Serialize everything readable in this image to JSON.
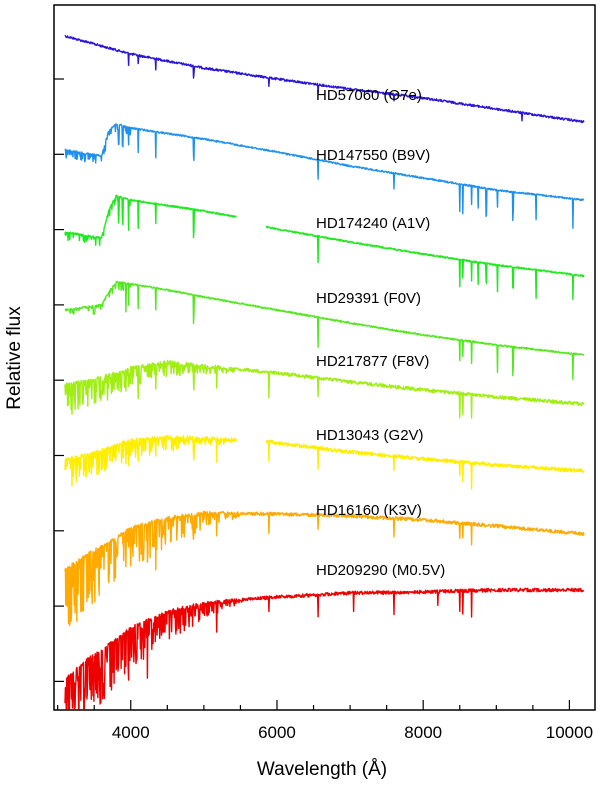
{
  "chart_data": {
    "type": "line",
    "title": "",
    "xlabel": "Wavelength  (Å)",
    "ylabel": "Relative flux",
    "xlim": [
      2950,
      10350
    ],
    "x_ticks": [
      4000,
      6000,
      8000,
      10000
    ],
    "x_tick_labels": [
      "4000",
      "6000",
      "8000",
      "10000"
    ],
    "y_tick_labels": "none",
    "grid": false,
    "legend": "inline labels next to each spectrum",
    "series": [
      {
        "name": "HD57060 (O7e)",
        "color": "#2a14d6",
        "x": [
          3100,
          4000,
          5000,
          6000,
          7000,
          8000,
          9000,
          10200
        ],
        "y": [
          36,
          54,
          68,
          79,
          89,
          98,
          109,
          122
        ],
        "absorption_lines": [
          3970,
          4101,
          4340,
          4861,
          5890,
          6563,
          7600,
          9350
        ]
      },
      {
        "name": "HD147550 (B9V)",
        "color": "#1e90ee",
        "x": [
          3100,
          3600,
          3700,
          3800,
          4000,
          5000,
          6000,
          7000,
          8000,
          9000,
          10200
        ],
        "y": [
          150,
          156,
          130,
          124,
          128,
          139,
          152,
          166,
          178,
          190,
          200
        ],
        "absorption_lines": [
          3835,
          3889,
          3970,
          4101,
          4340,
          4861,
          6563,
          7600,
          8498,
          8542,
          8662,
          8750,
          8863,
          9015,
          9229,
          9546,
          10049
        ]
      },
      {
        "name": "HD174240 (A1V)",
        "color": "#1ee81e",
        "x": [
          3100,
          3600,
          3700,
          3800,
          4000,
          5000,
          5450,
          5850,
          6000,
          7000,
          8000,
          9000,
          10200
        ],
        "y": [
          232,
          238,
          210,
          196,
          200,
          211,
          217,
          227,
          229,
          242,
          254,
          265,
          276
        ],
        "gaps": [
          [
            5450,
            5850
          ]
        ],
        "absorption_lines": [
          3835,
          3889,
          3970,
          4101,
          4340,
          4861,
          6563,
          8498,
          8542,
          8662,
          8750,
          8863,
          9015,
          9229,
          9546,
          10049
        ]
      },
      {
        "name": "HD29391 (F0V)",
        "color": "#52e81e",
        "x": [
          3100,
          3600,
          3700,
          3800,
          4000,
          4500,
          5000,
          6000,
          7000,
          8000,
          9000,
          10200
        ],
        "y": [
          310,
          305,
          292,
          282,
          284,
          290,
          297,
          310,
          323,
          335,
          345,
          355
        ],
        "absorption_lines": [
          3934,
          3970,
          4101,
          4340,
          4861,
          6563,
          8498,
          8542,
          8662,
          9015,
          9229,
          10049
        ]
      },
      {
        "name": "HD217877 (F8V)",
        "color": "#a0ee14",
        "x": [
          3100,
          3500,
          3800,
          4000,
          4500,
          5000,
          6000,
          7000,
          8000,
          9000,
          10200
        ],
        "y": [
          385,
          380,
          373,
          368,
          362,
          366,
          373,
          382,
          390,
          397,
          404
        ],
        "absorption_lines": [
          3934,
          3968,
          4101,
          4340,
          4861,
          5175,
          5890,
          6563,
          8498,
          8542,
          8662
        ]
      },
      {
        "name": "HD13043 (G2V)",
        "color": "#ffee00",
        "x": [
          3100,
          3500,
          3800,
          4000,
          4500,
          5000,
          5450,
          5850,
          6000,
          7000,
          8000,
          9000,
          10200
        ],
        "y": [
          460,
          453,
          445,
          440,
          437,
          438,
          440,
          441,
          443,
          452,
          459,
          465,
          471
        ],
        "gaps": [
          [
            5450,
            5850
          ]
        ],
        "absorption_lines": [
          3934,
          3968,
          4101,
          4340,
          4861,
          5175,
          5890,
          6563,
          7600,
          8498,
          8542,
          8662
        ]
      },
      {
        "name": "HD16160 (K3V)",
        "color": "#ffaa00",
        "x": [
          3100,
          3400,
          3800,
          4000,
          4500,
          5000,
          6000,
          7000,
          8000,
          9000,
          10200
        ],
        "y": [
          570,
          555,
          538,
          528,
          518,
          513,
          514,
          516,
          520,
          526,
          534
        ],
        "absorption_lines": [
          3934,
          3968,
          4227,
          4340,
          4861,
          5175,
          5890,
          6563,
          7600,
          8498,
          8542,
          8662
        ]
      },
      {
        "name": "HD209290 (M0.5V)",
        "color": "#ee0000",
        "x": [
          3100,
          3400,
          3800,
          4000,
          4500,
          5000,
          6000,
          7000,
          8000,
          9000,
          10200
        ],
        "y": [
          680,
          660,
          640,
          628,
          612,
          603,
          597,
          593,
          592,
          590,
          590
        ],
        "absorption_lines": [
          3934,
          3968,
          4227,
          5175,
          5890,
          6563,
          7050,
          7600,
          8200,
          8498,
          8542,
          8662
        ]
      }
    ]
  }
}
